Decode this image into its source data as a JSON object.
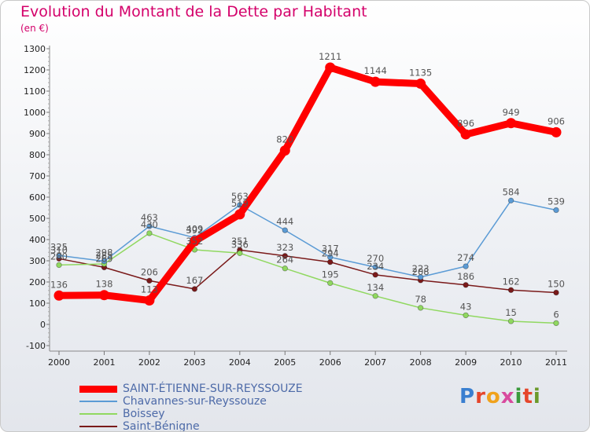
{
  "title": "Evolution du Montant de la Dette par Habitant",
  "subtitle": "(en €)",
  "logo": {
    "text": "Proxiti",
    "colors": [
      "#3a7fd0",
      "#e5462b",
      "#f0a21c",
      "#d84a9e",
      "#3a9a3c",
      "#e5462b",
      "#6b9a2b"
    ]
  },
  "chart_data": {
    "type": "line",
    "x": [
      "2000",
      "2001",
      "2002",
      "2003",
      "2004",
      "2005",
      "2006",
      "2007",
      "2008",
      "2009",
      "2010",
      "2011"
    ],
    "ylim": [
      -100,
      1300
    ],
    "yticks": [
      -100,
      0,
      100,
      200,
      300,
      400,
      500,
      600,
      700,
      800,
      900,
      1000,
      1100,
      1200,
      1300
    ],
    "grid": false,
    "legend_position": "bottom-left",
    "series": [
      {
        "name": "SAINT-ÉTIENNE-SUR-REYSSOUZE",
        "color": "#ff0000",
        "values": [
          136,
          138,
          113,
          392,
          519,
          820,
          1211,
          1144,
          1135,
          896,
          949,
          906
        ]
      },
      {
        "name": "Chavannes-sur-Reyssouze",
        "color": "#5b9bd5",
        "values": [
          325,
          298,
          463,
          409,
          563,
          444,
          317,
          270,
          223,
          274,
          584,
          539
        ]
      },
      {
        "name": "Boissey",
        "color": "#90d860",
        "values": [
          280,
          285,
          430,
          352,
          336,
          264,
          195,
          134,
          78,
          43,
          15,
          6
        ]
      },
      {
        "name": "Saint-Bénigne",
        "color": "#7a1a1a",
        "values": [
          310,
          269,
          206,
          167,
          351,
          323,
          294,
          234,
          208,
          186,
          162,
          150
        ]
      }
    ]
  }
}
